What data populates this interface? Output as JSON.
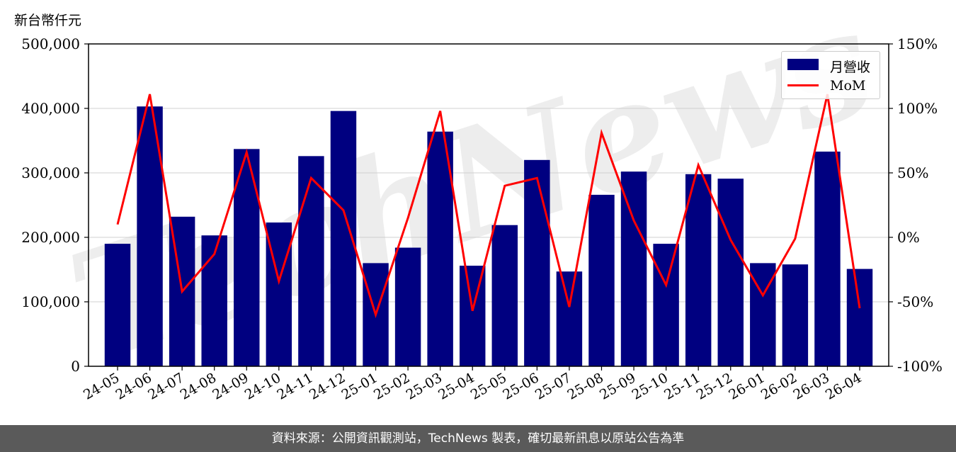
{
  "unit_label": "新台幣仟元",
  "footer_text": "資料來源：公開資訊觀測站，TechNews 製表，確切最新訊息以原站公告為準",
  "watermark_text": "TechNews",
  "legend": {
    "bar_label": "月營收",
    "line_label": "MoM"
  },
  "colors": {
    "bar": "#000080",
    "line": "#ff0000",
    "footer_bg": "#5a5a5a"
  },
  "chart_data": {
    "type": "bar",
    "categories": [
      "24-05",
      "24-06",
      "24-07",
      "24-08",
      "24-09",
      "24-10",
      "24-11",
      "24-12",
      "25-01",
      "25-02",
      "25-03",
      "25-04",
      "25-05",
      "25-06",
      "25-07",
      "25-08",
      "25-09",
      "25-10",
      "25-11",
      "25-12",
      "26-01",
      "26-02",
      "26-03",
      "26-04"
    ],
    "series": [
      {
        "name": "月營收",
        "type": "bar",
        "axis": "left",
        "values": [
          190000,
          403000,
          232000,
          203000,
          337000,
          223000,
          326000,
          396000,
          160000,
          184000,
          364000,
          156000,
          219000,
          320000,
          147000,
          266000,
          302000,
          190000,
          298000,
          291000,
          160000,
          158000,
          333000,
          151000
        ]
      },
      {
        "name": "MoM",
        "type": "line",
        "axis": "right",
        "values": [
          10,
          111,
          -42,
          -13,
          66,
          -34,
          46,
          21,
          -60,
          15,
          98,
          -57,
          40,
          46,
          -54,
          81,
          13,
          -37,
          56,
          -2,
          -45,
          -1,
          111,
          -55
        ]
      }
    ],
    "left_axis": {
      "ylim": [
        0,
        500000
      ],
      "ticks": [
        "0",
        "100,000",
        "200,000",
        "300,000",
        "400,000",
        "500,000"
      ]
    },
    "right_axis": {
      "ylim": [
        -100,
        150
      ],
      "ticks": [
        "-100%",
        "-50%",
        "0%",
        "50%",
        "100%",
        "150%"
      ]
    },
    "grid": true,
    "legend_position": "top-right"
  }
}
